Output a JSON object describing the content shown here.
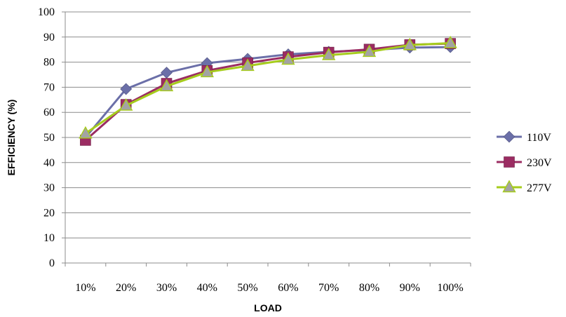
{
  "chart_data": {
    "type": "line",
    "title": "",
    "xlabel": "LOAD",
    "ylabel": "EFFICIENCY (%)",
    "categories": [
      "10%",
      "20%",
      "30%",
      "40%",
      "50%",
      "60%",
      "70%",
      "80%",
      "90%",
      "100%"
    ],
    "ylim": [
      0,
      100
    ],
    "yticks": [
      0,
      10,
      20,
      30,
      40,
      50,
      60,
      70,
      80,
      90,
      100
    ],
    "grid": true,
    "legend_position": "right",
    "series": [
      {
        "name": "110V",
        "color": "#6b6fa8",
        "marker": "diamond",
        "values": [
          50.0,
          69.3,
          75.8,
          79.6,
          81.3,
          83.1,
          84.1,
          84.8,
          85.8,
          86.0
        ]
      },
      {
        "name": "230V",
        "color": "#9b2c62",
        "marker": "square",
        "values": [
          48.9,
          63.1,
          71.5,
          76.6,
          79.7,
          82.1,
          83.9,
          85.1,
          86.9,
          87.4
        ]
      },
      {
        "name": "277V",
        "color": "#a6cc1c",
        "marker": "triangle",
        "values": [
          51.6,
          62.7,
          70.4,
          76.0,
          78.5,
          81.0,
          82.8,
          84.1,
          86.8,
          87.6
        ]
      }
    ]
  }
}
